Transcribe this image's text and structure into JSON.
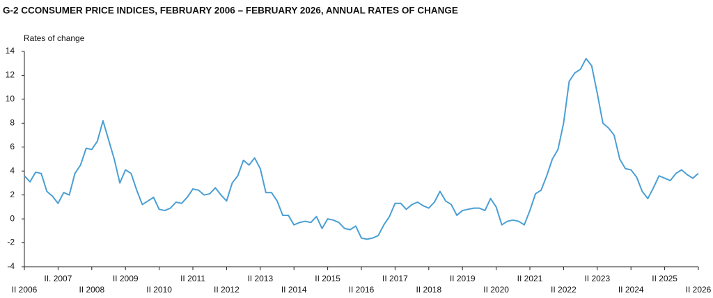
{
  "chart_data": {
    "type": "line",
    "title": "G-2   CCONSUMER PRICE INDICES, FEBRUARY 2006 – FEBRUARY 2026, ANNUAL RATES OF CHANGE",
    "y_label": "Rates of change",
    "color": "#4a9fd4",
    "ylim": [
      -4,
      14
    ],
    "yticks": [
      -4,
      -2,
      0,
      2,
      4,
      6,
      8,
      10,
      12,
      14
    ],
    "grid": false,
    "categories": [
      "II 2006",
      null,
      null,
      null,
      null,
      null,
      "II. 2007",
      null,
      null,
      null,
      null,
      null,
      "II 2008",
      null,
      null,
      null,
      null,
      null,
      "II 2009",
      null,
      null,
      null,
      null,
      null,
      "II 2010",
      null,
      null,
      null,
      null,
      null,
      "II 2011",
      null,
      null,
      null,
      null,
      null,
      "II 2012",
      null,
      null,
      null,
      null,
      null,
      "II 2013",
      null,
      null,
      null,
      null,
      null,
      "II 2014",
      null,
      null,
      null,
      null,
      null,
      "II 2015",
      null,
      null,
      null,
      null,
      null,
      "II 2016",
      null,
      null,
      null,
      null,
      null,
      "II 2017",
      null,
      null,
      null,
      null,
      null,
      "II 2018",
      null,
      null,
      null,
      null,
      null,
      "II 2019",
      null,
      null,
      null,
      null,
      null,
      "II 2020",
      null,
      null,
      null,
      null,
      null,
      "II 2021",
      null,
      null,
      null,
      null,
      null,
      "II 2022",
      null,
      null,
      null,
      null,
      null,
      "II 2023",
      null,
      null,
      null,
      null,
      null,
      "II 2024",
      null,
      null,
      null,
      null,
      null,
      "II 2025",
      null,
      null,
      null,
      null,
      null,
      "II 2026"
    ],
    "values": [
      3.6,
      3.1,
      3.9,
      3.8,
      2.3,
      1.9,
      1.3,
      2.2,
      2.0,
      3.8,
      4.5,
      5.9,
      5.8,
      6.5,
      8.2,
      6.6,
      5.0,
      3.0,
      4.1,
      3.8,
      2.4,
      1.2,
      1.5,
      1.8,
      0.8,
      0.7,
      0.9,
      1.4,
      1.3,
      1.8,
      2.5,
      2.4,
      2.0,
      2.1,
      2.6,
      2.0,
      1.5,
      3.0,
      3.6,
      4.9,
      4.5,
      5.1,
      4.2,
      2.2,
      2.2,
      1.5,
      0.3,
      0.3,
      -0.5,
      -0.3,
      -0.2,
      -0.3,
      0.2,
      -0.8,
      0.0,
      -0.1,
      -0.3,
      -0.8,
      -0.9,
      -0.6,
      -1.6,
      -1.7,
      -1.6,
      -1.4,
      -0.5,
      0.2,
      1.3,
      1.3,
      0.8,
      1.2,
      1.4,
      1.1,
      0.9,
      1.4,
      2.3,
      1.5,
      1.2,
      0.3,
      0.7,
      0.8,
      0.9,
      0.9,
      0.7,
      1.7,
      1.0,
      -0.5,
      -0.2,
      -0.1,
      -0.2,
      -0.5,
      0.7,
      2.1,
      2.4,
      3.6,
      5.0,
      5.8,
      8.0,
      11.5,
      12.2,
      12.5,
      13.4,
      12.8,
      10.5,
      8.0,
      7.6,
      7.0,
      5.0,
      4.2,
      4.1,
      3.5,
      2.3,
      1.7,
      2.6,
      3.6,
      3.4,
      3.2,
      3.8,
      4.1,
      3.7,
      3.4,
      3.8
    ]
  }
}
